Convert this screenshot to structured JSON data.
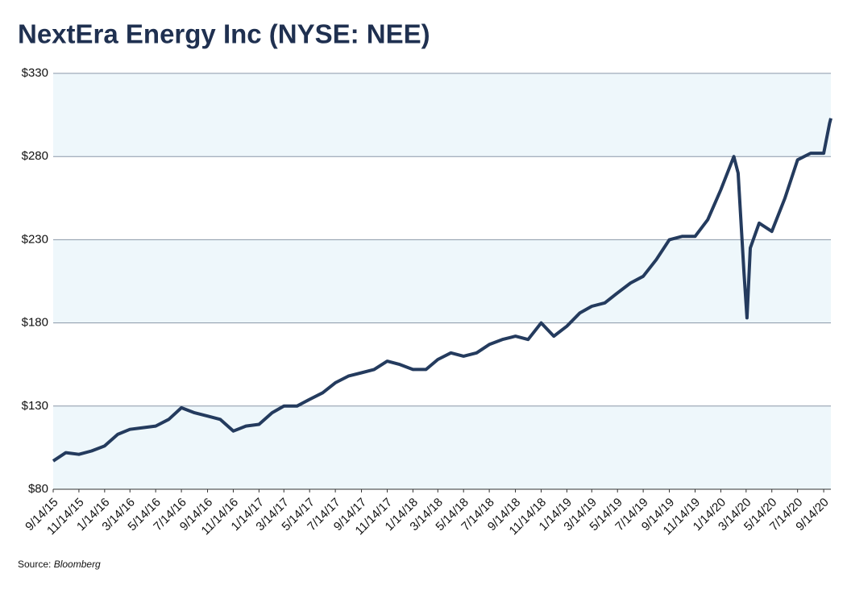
{
  "chart_data": {
    "type": "line",
    "title": "NextEra Energy Inc (NYSE: NEE)",
    "source_label": "Source:",
    "source": "Bloomberg",
    "x": [
      "9/14/15",
      "10/14/15",
      "11/14/15",
      "12/14/15",
      "1/14/16",
      "2/14/16",
      "3/14/16",
      "4/14/16",
      "5/14/16",
      "6/14/16",
      "7/14/16",
      "8/14/16",
      "9/14/16",
      "10/14/16",
      "11/14/16",
      "12/14/16",
      "1/14/17",
      "2/14/17",
      "3/14/17",
      "4/14/17",
      "5/14/17",
      "6/14/17",
      "7/14/17",
      "8/14/17",
      "9/14/17",
      "10/14/17",
      "11/14/17",
      "12/14/17",
      "1/14/18",
      "2/14/18",
      "3/14/18",
      "4/14/18",
      "5/14/18",
      "6/14/18",
      "7/14/18",
      "8/14/18",
      "9/14/18",
      "10/14/18",
      "11/14/18",
      "12/14/18",
      "1/14/19",
      "2/14/19",
      "3/14/19",
      "4/14/19",
      "5/14/19",
      "6/14/19",
      "7/14/19",
      "8/14/19",
      "9/14/19",
      "10/14/19",
      "11/14/19",
      "12/14/19",
      "1/14/20",
      "2/14/20",
      "2/24/20",
      "3/9/20",
      "3/16/20",
      "3/24/20",
      "4/14/20",
      "5/14/20",
      "6/14/20",
      "7/14/20",
      "8/14/20",
      "9/14/20",
      "9/28/20",
      "10/1/20"
    ],
    "series": [
      {
        "name": "NEE",
        "color": "#243b5e",
        "values": [
          97,
          102,
          101,
          103,
          106,
          113,
          116,
          117,
          118,
          122,
          129,
          126,
          124,
          122,
          115,
          118,
          119,
          126,
          130,
          130,
          134,
          138,
          144,
          148,
          150,
          152,
          157,
          155,
          152,
          152,
          158,
          162,
          160,
          162,
          167,
          170,
          172,
          170,
          180,
          172,
          178,
          186,
          190,
          192,
          198,
          204,
          208,
          218,
          230,
          232,
          232,
          242,
          260,
          280,
          270,
          210,
          183,
          225,
          240,
          235,
          255,
          278,
          282,
          282,
          300,
          303
        ]
      }
    ],
    "xlim": [
      "9/14/15",
      "10/1/20"
    ],
    "xticks": [
      "9/14/15",
      "11/14/15",
      "1/14/16",
      "3/14/16",
      "5/14/16",
      "7/14/16",
      "9/14/16",
      "11/14/16",
      "1/14/17",
      "3/14/17",
      "5/14/17",
      "7/14/17",
      "9/14/17",
      "11/14/17",
      "1/14/18",
      "3/14/18",
      "5/14/18",
      "7/14/18",
      "9/14/18",
      "11/14/18",
      "1/14/19",
      "3/14/19",
      "5/14/19",
      "7/14/19",
      "9/14/19",
      "11/14/19",
      "1/14/20",
      "3/14/20",
      "5/14/20",
      "7/14/20",
      "9/14/20"
    ],
    "ylim": [
      80,
      330
    ],
    "yticks": [
      {
        "value": 80,
        "label": "$80"
      },
      {
        "value": 130,
        "label": "$130"
      },
      {
        "value": 180,
        "label": "$180"
      },
      {
        "value": 230,
        "label": "$230"
      },
      {
        "value": 280,
        "label": "$280"
      },
      {
        "value": 330,
        "label": "$330"
      }
    ],
    "grid": true
  }
}
